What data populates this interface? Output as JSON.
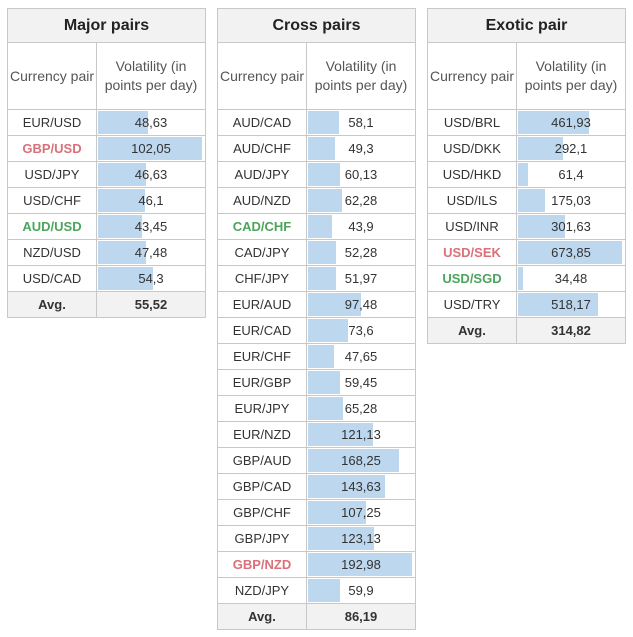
{
  "header_pair": "Currency pair",
  "header_volatility": "Volatility (in points per day)",
  "avg_label": "Avg.",
  "bar_color": "#bcd7ee",
  "highlight_colors": {
    "red": "#d9707a",
    "green": "#4ca55c"
  },
  "tables": [
    {
      "id": "major",
      "title": "Major pairs",
      "avg": "55,52",
      "rows": [
        {
          "pair": "EUR/USD",
          "value": "48,63",
          "hl": ""
        },
        {
          "pair": "GBP/USD",
          "value": "102,05",
          "hl": "red"
        },
        {
          "pair": "USD/JPY",
          "value": "46,63",
          "hl": ""
        },
        {
          "pair": "USD/CHF",
          "value": "46,1",
          "hl": ""
        },
        {
          "pair": "AUD/USD",
          "value": "43,45",
          "hl": "green"
        },
        {
          "pair": "NZD/USD",
          "value": "47,48",
          "hl": ""
        },
        {
          "pair": "USD/CAD",
          "value": "54,3",
          "hl": ""
        }
      ]
    },
    {
      "id": "cross",
      "title": "Cross pairs",
      "avg": "86,19",
      "rows": [
        {
          "pair": "AUD/CAD",
          "value": "58,1",
          "hl": ""
        },
        {
          "pair": "AUD/CHF",
          "value": "49,3",
          "hl": ""
        },
        {
          "pair": "AUD/JPY",
          "value": "60,13",
          "hl": ""
        },
        {
          "pair": "AUD/NZD",
          "value": "62,28",
          "hl": ""
        },
        {
          "pair": "CAD/CHF",
          "value": "43,9",
          "hl": "green"
        },
        {
          "pair": "CAD/JPY",
          "value": "52,28",
          "hl": ""
        },
        {
          "pair": "CHF/JPY",
          "value": "51,97",
          "hl": ""
        },
        {
          "pair": "EUR/AUD",
          "value": "97,48",
          "hl": ""
        },
        {
          "pair": "EUR/CAD",
          "value": "73,6",
          "hl": ""
        },
        {
          "pair": "EUR/CHF",
          "value": "47,65",
          "hl": ""
        },
        {
          "pair": "EUR/GBP",
          "value": "59,45",
          "hl": ""
        },
        {
          "pair": "EUR/JPY",
          "value": "65,28",
          "hl": ""
        },
        {
          "pair": "EUR/NZD",
          "value": "121,13",
          "hl": ""
        },
        {
          "pair": "GBP/AUD",
          "value": "168,25",
          "hl": ""
        },
        {
          "pair": "GBP/CAD",
          "value": "143,63",
          "hl": ""
        },
        {
          "pair": "GBP/CHF",
          "value": "107,25",
          "hl": ""
        },
        {
          "pair": "GBP/JPY",
          "value": "123,13",
          "hl": ""
        },
        {
          "pair": "GBP/NZD",
          "value": "192,98",
          "hl": "red"
        },
        {
          "pair": "NZD/JPY",
          "value": "59,9",
          "hl": ""
        }
      ]
    },
    {
      "id": "exotic",
      "title": "Exotic pair",
      "avg": "314,82",
      "rows": [
        {
          "pair": "USD/BRL",
          "value": "461,93",
          "hl": ""
        },
        {
          "pair": "USD/DKK",
          "value": "292,1",
          "hl": ""
        },
        {
          "pair": "USD/HKD",
          "value": "61,4",
          "hl": ""
        },
        {
          "pair": "USD/ILS",
          "value": "175,03",
          "hl": ""
        },
        {
          "pair": "USD/INR",
          "value": "301,63",
          "hl": ""
        },
        {
          "pair": "USD/SEK",
          "value": "673,85",
          "hl": "red"
        },
        {
          "pair": "USD/SGD",
          "value": "34,48",
          "hl": "green"
        },
        {
          "pair": "USD/TRY",
          "value": "518,17",
          "hl": ""
        }
      ]
    }
  ]
}
